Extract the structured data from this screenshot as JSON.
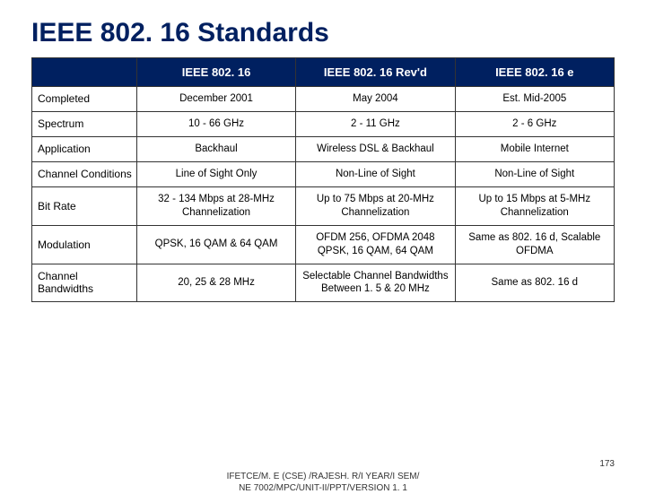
{
  "title": "IEEE 802. 16 Standards",
  "header": [
    "",
    "IEEE 802. 16",
    "IEEE 802. 16 Rev'd",
    "IEEE 802. 16 e"
  ],
  "rows": [
    {
      "label": "Completed",
      "cells": [
        "December 2001",
        "May 2004",
        "Est. Mid-2005"
      ]
    },
    {
      "label": "Spectrum",
      "cells": [
        "10 - 66 GHz",
        "2 - 11 GHz",
        "2 - 6 GHz"
      ]
    },
    {
      "label": "Application",
      "cells": [
        "Backhaul",
        "Wireless DSL & Backhaul",
        "Mobile Internet"
      ]
    },
    {
      "label": "Channel Conditions",
      "cells": [
        "Line of Sight Only",
        "Non-Line of Sight",
        "Non-Line of Sight"
      ]
    },
    {
      "label": "Bit Rate",
      "cells": [
        "32 - 134 Mbps at 28-MHz Channelization",
        "Up to 75 Mbps at 20-MHz Channelization",
        "Up to 15 Mbps at 5-MHz Channelization"
      ]
    },
    {
      "label": "Modulation",
      "cells": [
        "QPSK, 16 QAM & 64 QAM",
        "OFDM 256, OFDMA 2048 QPSK, 16 QAM, 64 QAM",
        "Same as 802. 16 d, Scalable OFDMA"
      ]
    },
    {
      "label": "Channel Bandwidths",
      "cells": [
        "20, 25 & 28 MHz",
        "Selectable Channel Bandwidths Between 1. 5 & 20 MHz",
        "Same as 802. 16 d"
      ]
    }
  ],
  "footer": {
    "text_line1": "IFETCE/M. E (CSE) /RAJESH. R/I YEAR/I SEM/",
    "text_line2": "NE 7002/MPC/UNIT-II/PPT/VERSION 1. 1",
    "page": "173"
  },
  "colors": {
    "title": "#002060",
    "header_bg": "#002060",
    "header_fg": "#ffffff",
    "border": "#333333",
    "background": "#ffffff"
  }
}
